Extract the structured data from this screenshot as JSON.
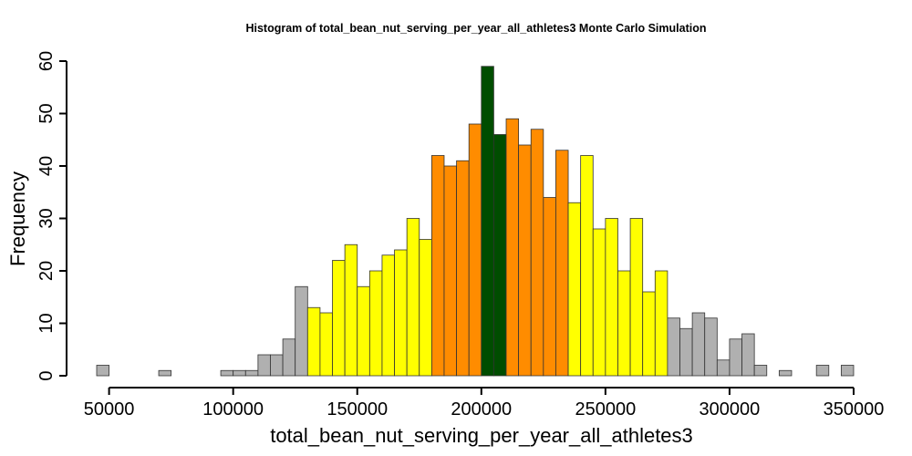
{
  "chart_data": {
    "type": "bar",
    "title": "Histogram of  total_bean_nut_serving_per_year_all_athletes3  Monte Carlo Simulation",
    "xlabel": "total_bean_nut_serving_per_year_all_athletes3",
    "ylabel": "Frequency",
    "bin_start": 45000,
    "bin_width": 5000,
    "xlim": [
      45000,
      350000
    ],
    "ylim": [
      0,
      60
    ],
    "xticks": [
      50000,
      100000,
      150000,
      200000,
      250000,
      300000,
      350000
    ],
    "xtick_labels": [
      "50000",
      "100000",
      "150000",
      "200000",
      "250000",
      "300000",
      "350000"
    ],
    "yticks": [
      0,
      10,
      20,
      30,
      40,
      50,
      60
    ],
    "ytick_labels": [
      "0",
      "10",
      "20",
      "30",
      "40",
      "50",
      "60"
    ],
    "grid": false,
    "values": [
      2,
      0,
      0,
      0,
      0,
      1,
      0,
      0,
      0,
      0,
      1,
      1,
      1,
      4,
      4,
      7,
      17,
      13,
      12,
      22,
      25,
      17,
      20,
      23,
      24,
      30,
      26,
      42,
      40,
      41,
      48,
      59,
      46,
      49,
      44,
      47,
      34,
      43,
      33,
      42,
      28,
      30,
      20,
      30,
      16,
      20,
      11,
      9,
      12,
      11,
      3,
      7,
      8,
      2,
      0,
      1,
      0,
      0,
      2,
      0,
      2
    ],
    "colors": {
      "tail": "#b0b0b0",
      "outer": "#ffff00",
      "inner": "#ff8c00",
      "center": "#004d00"
    },
    "color_bands": [
      {
        "from": 45000,
        "to": 130000,
        "color": "tail"
      },
      {
        "from": 130000,
        "to": 180000,
        "color": "outer"
      },
      {
        "from": 180000,
        "to": 200000,
        "color": "inner"
      },
      {
        "from": 200000,
        "to": 210000,
        "color": "center"
      },
      {
        "from": 210000,
        "to": 235000,
        "color": "inner"
      },
      {
        "from": 235000,
        "to": 275000,
        "color": "outer"
      },
      {
        "from": 275000,
        "to": 350000,
        "color": "tail"
      }
    ]
  }
}
